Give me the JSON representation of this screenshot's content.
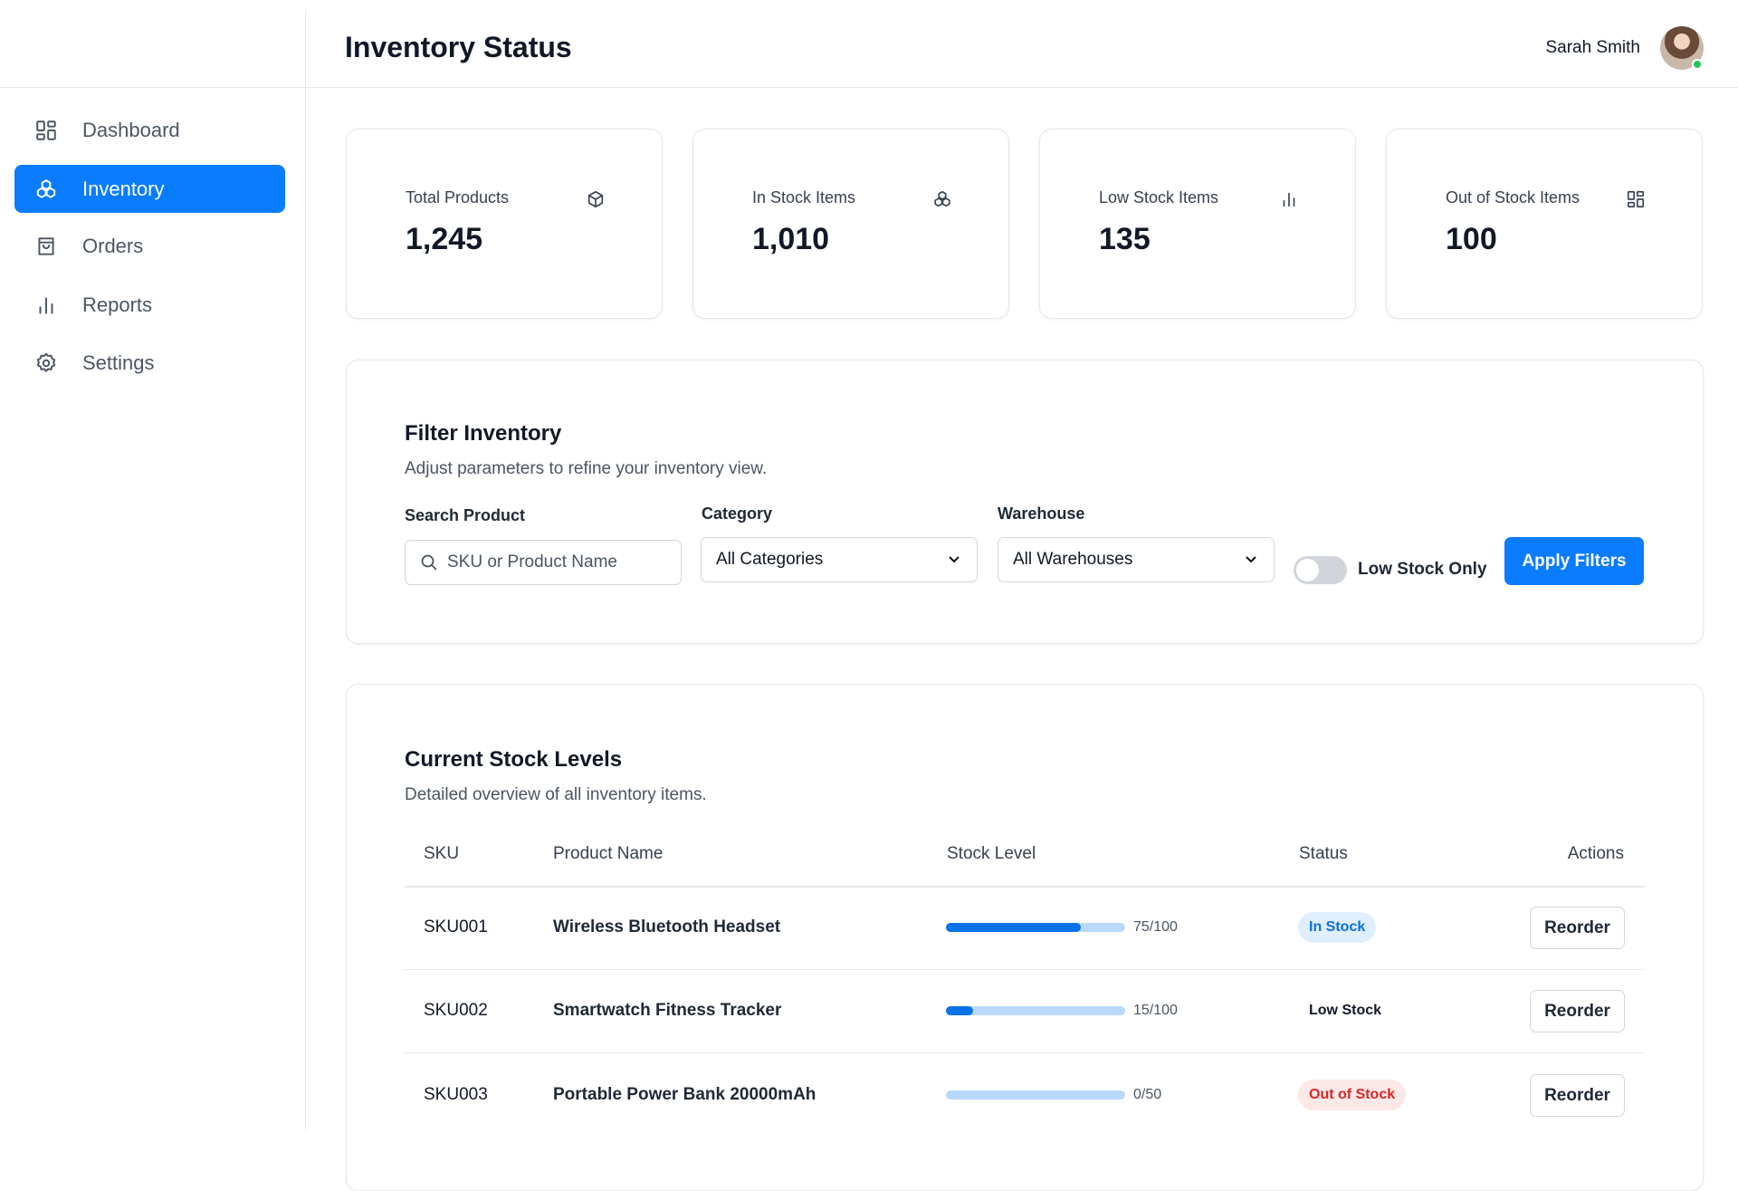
{
  "header": {
    "title": "Inventory Status",
    "user_name": "Sarah Smith"
  },
  "sidebar": {
    "items": [
      "Dashboard",
      "Inventory",
      "Orders",
      "Reports",
      "Settings"
    ]
  },
  "stats": [
    {
      "label": "Total Products",
      "value": "1,245"
    },
    {
      "label": "In Stock Items",
      "value": "1,010"
    },
    {
      "label": "Low Stock Items",
      "value": "135"
    },
    {
      "label": "Out of Stock Items",
      "value": "100"
    }
  ],
  "filter": {
    "title": "Filter Inventory",
    "subtitle": "Adjust parameters to refine your inventory view.",
    "search_label": "Search Product",
    "search_placeholder": "SKU or Product Name",
    "category_label": "Category",
    "category_value": "All Categories",
    "warehouse_label": "Warehouse",
    "warehouse_value": "All Warehouses",
    "toggle_label": "Low Stock Only",
    "button": "Apply Filters"
  },
  "table": {
    "title": "Current Stock Levels",
    "subtitle": "Detailed overview of all inventory items.",
    "columns": [
      "SKU",
      "Product Name",
      "Stock Level",
      "Status",
      "Actions"
    ],
    "rows": [
      {
        "sku": "SKU001",
        "name": "Wireless Bluetooth Headset",
        "stock": 75,
        "capacity": 100,
        "stock_label": "75/100",
        "status": "In Stock",
        "action": "Reorder"
      },
      {
        "sku": "SKU002",
        "name": "Smartwatch Fitness Tracker",
        "stock": 15,
        "capacity": 100,
        "stock_label": "15/100",
        "status": "Low Stock",
        "action": "Reorder"
      },
      {
        "sku": "SKU003",
        "name": "Portable Power Bank 20000mAh",
        "stock": 0,
        "capacity": 50,
        "stock_label": "0/50",
        "status": "Out of Stock",
        "action": "Reorder"
      }
    ]
  }
}
